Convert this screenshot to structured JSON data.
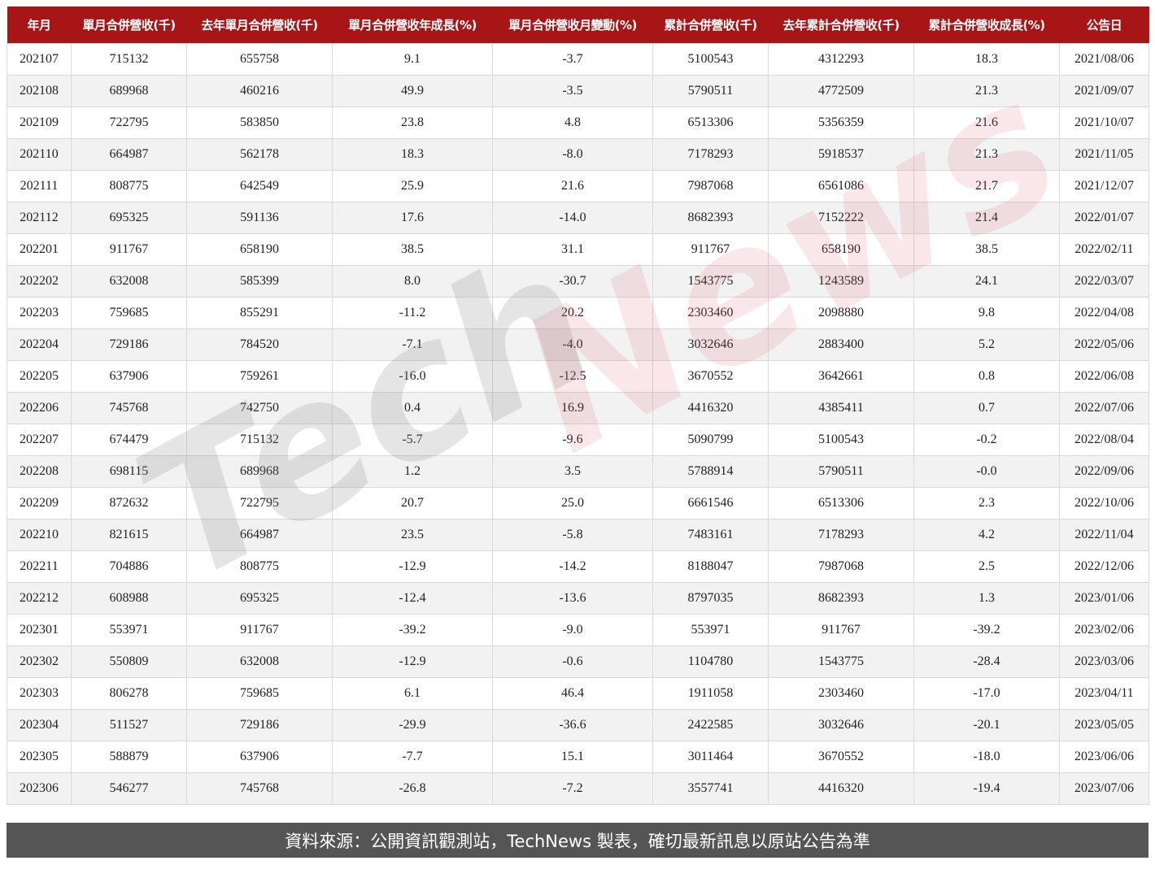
{
  "table": {
    "headers": [
      "年月",
      "單月合併營收(千)",
      "去年單月合併營收(千)",
      "單月合併營收年成長(%)",
      "單月合併營收月變動(%)",
      "累計合併營收(千)",
      "去年累計合併營收(千)",
      "累計合併營收成長(%)",
      "公告日"
    ],
    "rows": [
      [
        "202107",
        "715132",
        "655758",
        "9.1",
        "-3.7",
        "5100543",
        "4312293",
        "18.3",
        "2021/08/06"
      ],
      [
        "202108",
        "689968",
        "460216",
        "49.9",
        "-3.5",
        "5790511",
        "4772509",
        "21.3",
        "2021/09/07"
      ],
      [
        "202109",
        "722795",
        "583850",
        "23.8",
        "4.8",
        "6513306",
        "5356359",
        "21.6",
        "2021/10/07"
      ],
      [
        "202110",
        "664987",
        "562178",
        "18.3",
        "-8.0",
        "7178293",
        "5918537",
        "21.3",
        "2021/11/05"
      ],
      [
        "202111",
        "808775",
        "642549",
        "25.9",
        "21.6",
        "7987068",
        "6561086",
        "21.7",
        "2021/12/07"
      ],
      [
        "202112",
        "695325",
        "591136",
        "17.6",
        "-14.0",
        "8682393",
        "7152222",
        "21.4",
        "2022/01/07"
      ],
      [
        "202201",
        "911767",
        "658190",
        "38.5",
        "31.1",
        "911767",
        "658190",
        "38.5",
        "2022/02/11"
      ],
      [
        "202202",
        "632008",
        "585399",
        "8.0",
        "-30.7",
        "1543775",
        "1243589",
        "24.1",
        "2022/03/07"
      ],
      [
        "202203",
        "759685",
        "855291",
        "-11.2",
        "20.2",
        "2303460",
        "2098880",
        "9.8",
        "2022/04/08"
      ],
      [
        "202204",
        "729186",
        "784520",
        "-7.1",
        "-4.0",
        "3032646",
        "2883400",
        "5.2",
        "2022/05/06"
      ],
      [
        "202205",
        "637906",
        "759261",
        "-16.0",
        "-12.5",
        "3670552",
        "3642661",
        "0.8",
        "2022/06/08"
      ],
      [
        "202206",
        "745768",
        "742750",
        "0.4",
        "16.9",
        "4416320",
        "4385411",
        "0.7",
        "2022/07/06"
      ],
      [
        "202207",
        "674479",
        "715132",
        "-5.7",
        "-9.6",
        "5090799",
        "5100543",
        "-0.2",
        "2022/08/04"
      ],
      [
        "202208",
        "698115",
        "689968",
        "1.2",
        "3.5",
        "5788914",
        "5790511",
        "-0.0",
        "2022/09/06"
      ],
      [
        "202209",
        "872632",
        "722795",
        "20.7",
        "25.0",
        "6661546",
        "6513306",
        "2.3",
        "2022/10/06"
      ],
      [
        "202210",
        "821615",
        "664987",
        "23.5",
        "-5.8",
        "7483161",
        "7178293",
        "4.2",
        "2022/11/04"
      ],
      [
        "202211",
        "704886",
        "808775",
        "-12.9",
        "-14.2",
        "8188047",
        "7987068",
        "2.5",
        "2022/12/06"
      ],
      [
        "202212",
        "608988",
        "695325",
        "-12.4",
        "-13.6",
        "8797035",
        "8682393",
        "1.3",
        "2023/01/06"
      ],
      [
        "202301",
        "553971",
        "911767",
        "-39.2",
        "-9.0",
        "553971",
        "911767",
        "-39.2",
        "2023/02/06"
      ],
      [
        "202302",
        "550809",
        "632008",
        "-12.9",
        "-0.6",
        "1104780",
        "1543775",
        "-28.4",
        "2023/03/06"
      ],
      [
        "202303",
        "806278",
        "759685",
        "6.1",
        "46.4",
        "1911058",
        "2303460",
        "-17.0",
        "2023/04/11"
      ],
      [
        "202304",
        "511527",
        "729186",
        "-29.9",
        "-36.6",
        "2422585",
        "3032646",
        "-20.1",
        "2023/05/05"
      ],
      [
        "202305",
        "588879",
        "637906",
        "-7.7",
        "15.1",
        "3011464",
        "3670552",
        "-18.0",
        "2023/06/06"
      ],
      [
        "202306",
        "546277",
        "745768",
        "-26.8",
        "-7.2",
        "3557741",
        "4416320",
        "-19.4",
        "2023/07/06"
      ]
    ]
  },
  "watermark": {
    "part1": "Tech",
    "part2": "News"
  },
  "colors": {
    "header_bg": "#a81517",
    "footer_bg": "#555555",
    "row_alt": "#f2f2f2"
  },
  "footer": {
    "text": "資料來源：公開資訊觀測站，TechNews 製表，確切最新訊息以原站公告為準"
  }
}
